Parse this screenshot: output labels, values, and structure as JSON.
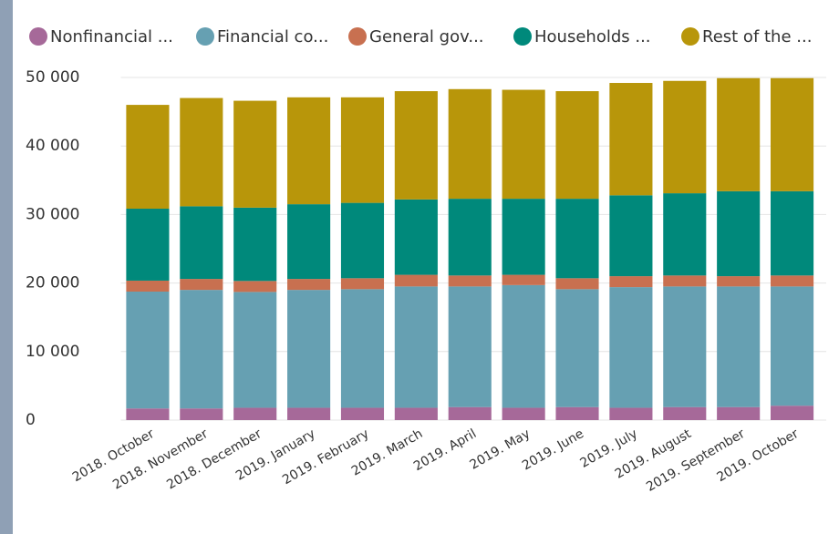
{
  "chart_data": {
    "type": "stacked_bar",
    "categories": [
      "2018. October",
      "2018. November",
      "2018. December",
      "2019. January",
      "2019. February",
      "2019. March",
      "2019. April",
      "2019. May",
      "2019. June",
      "2019. July",
      "2019. August",
      "2019. September",
      "2019. October"
    ],
    "series": [
      {
        "name": "Nonfinancial ...",
        "color": "#a66999",
        "values": [
          1700,
          1700,
          1800,
          1800,
          1800,
          1800,
          1900,
          1800,
          1900,
          1800,
          1900,
          1900,
          2100
        ]
      },
      {
        "name": "Financial co...",
        "color": "#66a0b2",
        "values": [
          17050,
          17300,
          16900,
          17200,
          17300,
          17700,
          17600,
          17900,
          17200,
          17600,
          17600,
          17600,
          17400
        ]
      },
      {
        "name": "General gov...",
        "color": "#c87050",
        "values": [
          1600,
          1600,
          1600,
          1600,
          1600,
          1700,
          1600,
          1500,
          1600,
          1600,
          1600,
          1500,
          1600
        ]
      },
      {
        "name": "Households ...",
        "color": "#00897b",
        "values": [
          10500,
          10600,
          10700,
          10900,
          11000,
          11000,
          11200,
          11100,
          11600,
          11800,
          12000,
          12400,
          12300
        ]
      },
      {
        "name": "Rest of the ...",
        "color": "#b8960a",
        "values": [
          15150,
          15800,
          15600,
          15600,
          15400,
          15800,
          16000,
          15900,
          15700,
          16400,
          16400,
          16500,
          16500
        ]
      }
    ],
    "ylim": [
      0,
      50000
    ],
    "yticks": [
      0,
      {
        "value": 10000,
        "label": "10 000"
      },
      {
        "value": 20000,
        "label": "20 000"
      },
      {
        "value": 30000,
        "label": "30 000"
      },
      {
        "value": 40000,
        "label": "40 000"
      },
      {
        "value": 50000,
        "label": "50 000"
      }
    ],
    "grid": true
  }
}
